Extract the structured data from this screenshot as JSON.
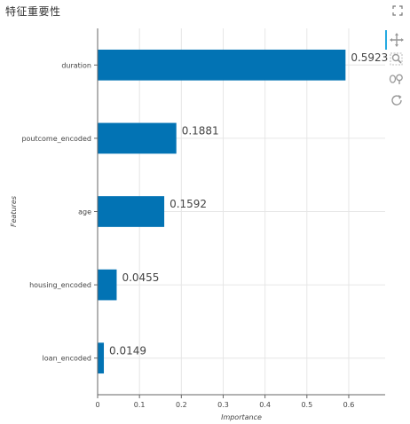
{
  "panel": {
    "title": "特征重要性"
  },
  "icons": {
    "expand": "expand-icon",
    "tools": [
      "pan-icon",
      "box-zoom-icon",
      "wheel-zoom-icon",
      "reset-icon"
    ]
  },
  "colors": {
    "bar": "#0273b4",
    "axis": "#666666",
    "grid": "#e6e6e6",
    "text": "#444444",
    "toolbar_active": "#26aae1"
  },
  "chart_data": {
    "type": "bar",
    "orientation": "horizontal",
    "categories": [
      "duration",
      "poutcome_encoded",
      "age",
      "housing_encoded",
      "loan_encoded"
    ],
    "values": [
      0.5923,
      0.1881,
      0.1592,
      0.0455,
      0.0149
    ],
    "value_labels": [
      "0.5923",
      "0.1881",
      "0.1592",
      "0.0455",
      "0.0149"
    ],
    "xlabel": "Importance",
    "ylabel": "Features",
    "xlim": [
      0,
      0.687
    ],
    "xticks": [
      0,
      0.1,
      0.2,
      0.3,
      0.4,
      0.5,
      0.6
    ],
    "xtick_labels": [
      "0",
      "0.1",
      "0.2",
      "0.3",
      "0.4",
      "0.5",
      "0.6"
    ],
    "grid": true
  }
}
